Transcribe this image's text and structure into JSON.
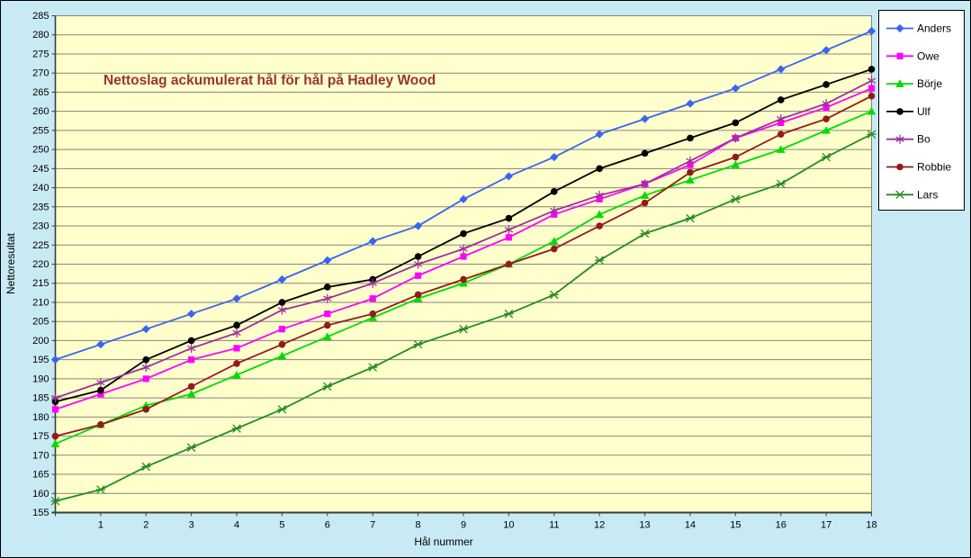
{
  "window": {
    "background_color": "#c8eaf4",
    "plot_background_color": "#ffffcc",
    "gridline_color": "#85857a",
    "axis_color": "#3c3c3c",
    "title_color": "#993333"
  },
  "chart_data": {
    "type": "line",
    "title": "Nettoslag ackumulerat hål för hål på Hadley Wood",
    "xlabel": "Hål nummer",
    "ylabel": "Nettoresultat",
    "ylim": [
      155,
      285
    ],
    "y_tick_step": 5,
    "grid": "horizontal",
    "legend_position": "right",
    "x_start_label": "",
    "x_tick_labels": [
      "1",
      "2",
      "3",
      "4",
      "5",
      "6",
      "7",
      "8",
      "9",
      "10",
      "11",
      "12",
      "13",
      "14",
      "15",
      "16",
      "17",
      "18"
    ],
    "series": [
      {
        "name": "Anders",
        "color": "#3a64f0",
        "marker": "diamond",
        "values": [
          195,
          199,
          203,
          207,
          211,
          216,
          221,
          226,
          230,
          237,
          243,
          248,
          254,
          258,
          262,
          266,
          271,
          276,
          281
        ]
      },
      {
        "name": "Owe",
        "color": "#ff00ff",
        "marker": "square",
        "values": [
          182,
          186,
          190,
          195,
          198,
          203,
          207,
          211,
          217,
          222,
          227,
          233,
          237,
          241,
          246,
          253,
          257,
          261,
          266
        ]
      },
      {
        "name": "Börje",
        "color": "#00dc00",
        "marker": "triangle",
        "values": [
          173,
          178,
          183,
          186,
          191,
          196,
          201,
          206,
          211,
          215,
          220,
          226,
          233,
          238,
          242,
          246,
          250,
          255,
          260
        ]
      },
      {
        "name": "Ulf",
        "color": "#000000",
        "marker": "circle",
        "values": [
          184,
          187,
          195,
          200,
          204,
          210,
          214,
          216,
          222,
          228,
          232,
          239,
          245,
          249,
          253,
          257,
          263,
          267,
          271
        ]
      },
      {
        "name": "Bo",
        "color": "#993399",
        "marker": "star",
        "values": [
          185,
          189,
          193,
          198,
          202,
          208,
          211,
          215,
          220,
          224,
          229,
          234,
          238,
          241,
          247,
          253,
          258,
          262,
          268
        ]
      },
      {
        "name": "Robbie",
        "color": "#941a1a",
        "marker": "circle",
        "values": [
          175,
          178,
          182,
          188,
          194,
          199,
          204,
          207,
          212,
          216,
          220,
          224,
          230,
          236,
          244,
          248,
          254,
          258,
          264
        ]
      },
      {
        "name": "Lars",
        "color": "#228b22",
        "marker": "xline",
        "values": [
          158,
          161,
          167,
          172,
          177,
          182,
          188,
          193,
          199,
          203,
          207,
          212,
          221,
          228,
          232,
          237,
          241,
          248,
          254
        ]
      }
    ]
  }
}
